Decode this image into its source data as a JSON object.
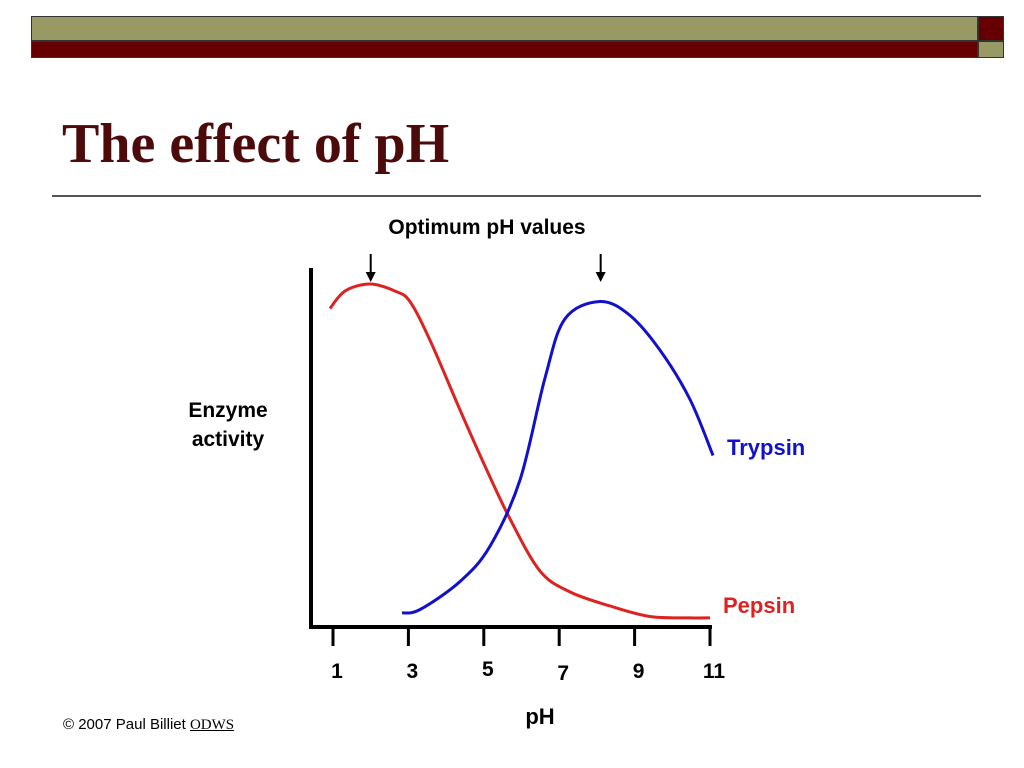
{
  "slide": {
    "title": "The effect of pH",
    "footer_copyright": "© 2007 Paul Billiet",
    "footer_link": "ODWS"
  },
  "colors": {
    "olive": "#999966",
    "maroon": "#660000",
    "title": "#4d0a0a",
    "pepsin": "#dd2222",
    "trypsin": "#1111cc"
  },
  "chart_data": {
    "type": "line",
    "title": "Optimum pH values",
    "xlabel": "pH",
    "ylabel": [
      "Enzyme",
      "activity"
    ],
    "xticks": [
      1,
      3,
      5,
      7,
      9,
      11
    ],
    "xlim": [
      0.4,
      11.1
    ],
    "ylim": [
      0,
      100
    ],
    "grid": false,
    "annotations": [
      {
        "label": "optimum-pepsin",
        "x": 2.0
      },
      {
        "label": "optimum-trypsin",
        "x": 8.1
      }
    ],
    "series": [
      {
        "name": "Pepsin",
        "color": "#dd2222",
        "x": [
          0.92,
          1.32,
          1.98,
          2.64,
          3.04,
          3.57,
          4.37,
          5.03,
          5.69,
          6.49,
          7.29,
          8.35,
          9.41,
          10.47,
          11.0
        ],
        "y": [
          91,
          96,
          98,
          96,
          93,
          82,
          62,
          46,
          31,
          16,
          10,
          6,
          3,
          2.6,
          2.6
        ]
      },
      {
        "name": "Trypsin",
        "color": "#1111cc",
        "x": [
          2.83,
          3.31,
          4.37,
          5.16,
          5.96,
          6.62,
          7.15,
          8.08,
          8.88,
          9.68,
          10.47,
          11.08
        ],
        "y": [
          4,
          5,
          13,
          23,
          42,
          71,
          88,
          93,
          89,
          79,
          65,
          49
        ]
      }
    ]
  }
}
